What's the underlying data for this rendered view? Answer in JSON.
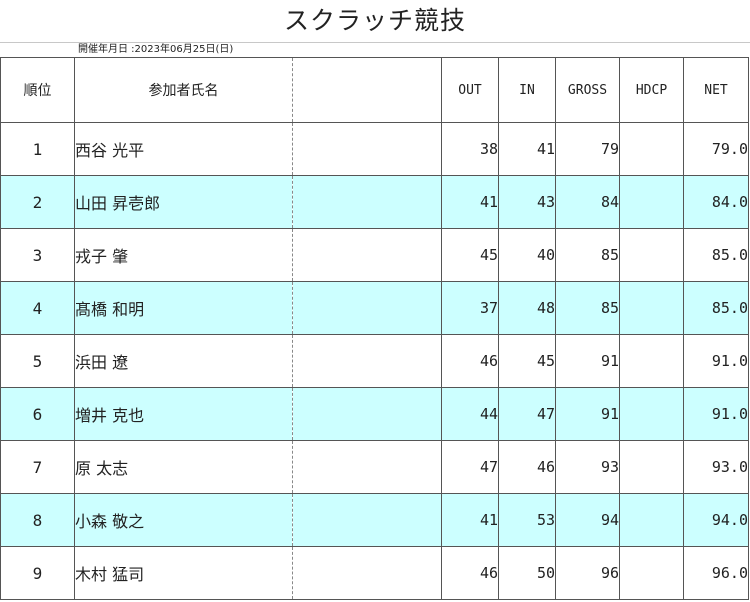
{
  "title": "スクラッチ競技",
  "date_line": "開催年月日 :2023年06月25日(日)",
  "headers": {
    "rank": "順位",
    "name": "参加者氏名",
    "out": "OUT",
    "in": "IN",
    "gross": "GROSS",
    "hdcp": "HDCP",
    "net": "NET"
  },
  "rows": [
    {
      "rank": "1",
      "name": "西谷 光平",
      "out": "38",
      "in": "41",
      "gross": "79",
      "hdcp": "",
      "net": "79.0"
    },
    {
      "rank": "2",
      "name": "山田 昇壱郎",
      "out": "41",
      "in": "43",
      "gross": "84",
      "hdcp": "",
      "net": "84.0"
    },
    {
      "rank": "3",
      "name": "戎子 肇",
      "out": "45",
      "in": "40",
      "gross": "85",
      "hdcp": "",
      "net": "85.0"
    },
    {
      "rank": "4",
      "name": "髙橋 和明",
      "out": "37",
      "in": "48",
      "gross": "85",
      "hdcp": "",
      "net": "85.0"
    },
    {
      "rank": "5",
      "name": "浜田 遼",
      "out": "46",
      "in": "45",
      "gross": "91",
      "hdcp": "",
      "net": "91.0"
    },
    {
      "rank": "6",
      "name": "増井 克也",
      "out": "44",
      "in": "47",
      "gross": "91",
      "hdcp": "",
      "net": "91.0"
    },
    {
      "rank": "7",
      "name": "原 太志",
      "out": "47",
      "in": "46",
      "gross": "93",
      "hdcp": "",
      "net": "93.0"
    },
    {
      "rank": "8",
      "name": "小森 敬之",
      "out": "41",
      "in": "53",
      "gross": "94",
      "hdcp": "",
      "net": "94.0"
    },
    {
      "rank": "9",
      "name": "木村 猛司",
      "out": "46",
      "in": "50",
      "gross": "96",
      "hdcp": "",
      "net": "96.0"
    }
  ],
  "colors": {
    "alt_row": "#ccffff",
    "border": "#555555"
  }
}
